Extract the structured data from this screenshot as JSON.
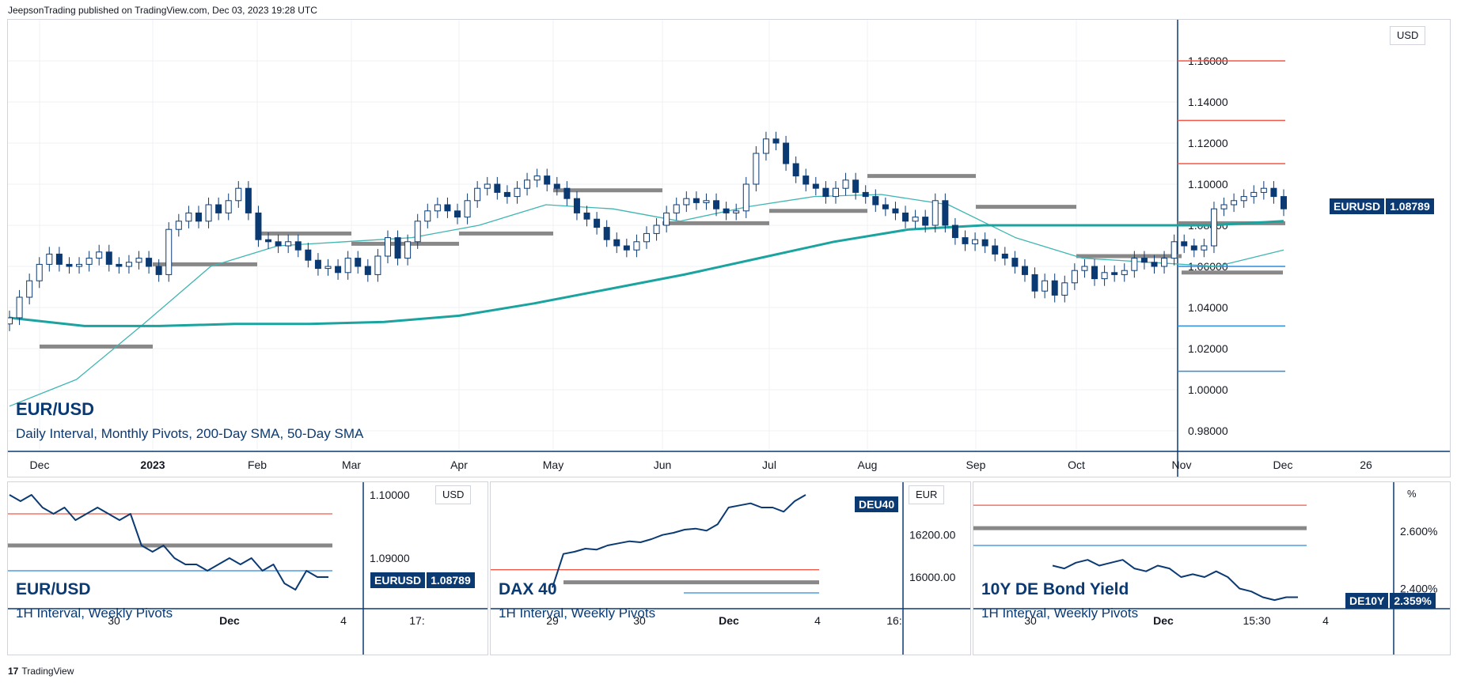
{
  "header": {
    "text": "JeepsonTrading published on TradingView.com, Dec 03, 2023 19:28 UTC"
  },
  "footer": {
    "logo": "17",
    "text": "TradingView"
  },
  "colors": {
    "candle_up": "#ffffff",
    "candle_down": "#0b3a73",
    "sma200": "#1aa39f",
    "sma50": "#3fb6b2",
    "pivot_grey": "#888888",
    "r_red": "#f05a4a",
    "s_blue": "#2e8bdc",
    "title_blue": "#0b3a73"
  },
  "main": {
    "title": "EUR/USD",
    "subtitle": "Daily Interval, Monthly Pivots, 200-Day SMA, 50-Day SMA",
    "unit": "USD",
    "badge_symbol": "EURUSD",
    "badge_value": "1.08789",
    "x_labels": [
      "Dec",
      "2023",
      "Feb",
      "Mar",
      "Apr",
      "May",
      "Jun",
      "Jul",
      "Aug",
      "Sep",
      "Oct",
      "Nov",
      "Dec",
      "26"
    ],
    "y_labels": [
      "1.16000",
      "1.14000",
      "1.12000",
      "1.10000",
      "1.08000",
      "1.06000",
      "1.04000",
      "1.02000",
      "1.00000",
      "0.98000"
    ]
  },
  "mini": [
    {
      "title": "EUR/USD",
      "subtitle": "1H Interval, Weekly Pivots",
      "unit": "USD",
      "badge_symbol": "EURUSD",
      "badge_value": "1.08789",
      "y_labels": [
        "1.10000",
        "1.09000"
      ],
      "x_labels": [
        "30",
        "Dec",
        "4",
        "17:"
      ]
    },
    {
      "title": "DAX 40",
      "subtitle": "1H Interval, Weekly Pivots",
      "unit": "EUR",
      "badge_symbol": "DEU40",
      "badge_value": "",
      "y_labels": [
        "16200.00",
        "16000.00"
      ],
      "x_labels": [
        "29",
        "30",
        "Dec",
        "4",
        "16:"
      ]
    },
    {
      "title": "10Y DE Bond Yield",
      "subtitle": "1H Interval, Weekly Pivots",
      "unit": "%",
      "badge_symbol": "DE10Y",
      "badge_value": "2.359%",
      "y_labels": [
        "2.600%",
        "2.400%"
      ],
      "x_labels": [
        "30",
        "Dec",
        "15:30",
        "4"
      ]
    }
  ],
  "chart_data": [
    {
      "type": "candlestick",
      "title": "EUR/USD",
      "ylim": [
        0.97,
        1.18
      ],
      "x": [
        "Dec",
        "2023",
        "Feb",
        "Mar",
        "Apr",
        "May",
        "Jun",
        "Jul",
        "Aug",
        "Sep",
        "Oct",
        "Nov",
        "Dec",
        "26"
      ],
      "close_series": [
        1.035,
        1.045,
        1.053,
        1.061,
        1.066,
        1.061,
        1.06,
        1.061,
        1.064,
        1.067,
        1.061,
        1.06,
        1.062,
        1.064,
        1.06,
        1.056,
        1.078,
        1.082,
        1.086,
        1.082,
        1.09,
        1.086,
        1.092,
        1.098,
        1.086,
        1.073,
        1.072,
        1.07,
        1.072,
        1.068,
        1.063,
        1.059,
        1.06,
        1.057,
        1.064,
        1.06,
        1.056,
        1.065,
        1.074,
        1.064,
        1.072,
        1.082,
        1.087,
        1.09,
        1.087,
        1.084,
        1.092,
        1.098,
        1.1,
        1.096,
        1.094,
        1.098,
        1.102,
        1.104,
        1.1,
        1.098,
        1.093,
        1.086,
        1.083,
        1.079,
        1.073,
        1.07,
        1.068,
        1.072,
        1.076,
        1.08,
        1.086,
        1.09,
        1.093,
        1.091,
        1.092,
        1.088,
        1.086,
        1.087,
        1.1,
        1.115,
        1.122,
        1.12,
        1.11,
        1.104,
        1.1,
        1.098,
        1.094,
        1.098,
        1.102,
        1.096,
        1.094,
        1.09,
        1.088,
        1.086,
        1.082,
        1.084,
        1.08,
        1.092,
        1.08,
        1.074,
        1.071,
        1.073,
        1.07,
        1.066,
        1.064,
        1.06,
        1.056,
        1.048,
        1.053,
        1.046,
        1.052,
        1.058,
        1.06,
        1.054,
        1.057,
        1.056,
        1.058,
        1.064,
        1.062,
        1.06,
        1.064,
        1.072,
        1.07,
        1.068,
        1.07,
        1.088,
        1.09,
        1.092,
        1.094,
        1.096,
        1.098,
        1.094,
        1.088
      ],
      "sma200": [
        1.035,
        1.031,
        1.031,
        1.032,
        1.032,
        1.033,
        1.036,
        1.042,
        1.049,
        1.056,
        1.064,
        1.072,
        1.078,
        1.08,
        1.08,
        1.08,
        1.08,
        1.082
      ],
      "sma50": [
        0.992,
        1.005,
        1.032,
        1.06,
        1.07,
        1.072,
        1.074,
        1.08,
        1.09,
        1.088,
        1.082,
        1.089,
        1.094,
        1.095,
        1.09,
        1.074,
        1.064,
        1.062,
        1.06,
        1.068
      ],
      "monthly_pivots": [
        {
          "from": "Dec",
          "to": "2023",
          "value": 1.021
        },
        {
          "from": "2023",
          "to": "Feb",
          "value": 1.061
        },
        {
          "from": "Feb",
          "to": "Mar",
          "value": 1.076
        },
        {
          "from": "Mar",
          "to": "Apr",
          "value": 1.071
        },
        {
          "from": "Apr",
          "to": "May",
          "value": 1.076
        },
        {
          "from": "May",
          "to": "Jun",
          "value": 1.097
        },
        {
          "from": "Jun",
          "to": "Jul",
          "value": 1.081
        },
        {
          "from": "Jul",
          "to": "Aug",
          "value": 1.087
        },
        {
          "from": "Aug",
          "to": "Sep",
          "value": 1.104
        },
        {
          "from": "Sep",
          "to": "Oct",
          "value": 1.089
        },
        {
          "from": "Oct",
          "to": "Nov",
          "value": 1.065
        },
        {
          "from": "Nov",
          "to": "Dec",
          "value": 1.057
        },
        {
          "from": "Dec",
          "to": "",
          "value": 1.081
        }
      ],
      "resistance_levels": [
        1.16,
        1.131,
        1.11
      ],
      "support_levels": [
        1.06,
        1.031,
        1.009
      ],
      "last_value": 1.08789
    },
    {
      "type": "line",
      "title": "EUR/USD",
      "ylim": [
        1.082,
        1.102
      ],
      "values": [
        1.1,
        1.099,
        1.1,
        1.098,
        1.097,
        1.098,
        1.096,
        1.097,
        1.098,
        1.097,
        1.096,
        1.097,
        1.092,
        1.091,
        1.092,
        1.09,
        1.089,
        1.089,
        1.088,
        1.089,
        1.09,
        1.089,
        1.09,
        1.088,
        1.089,
        1.086,
        1.085,
        1.088,
        1.087,
        1.087
      ],
      "pivot": 1.092,
      "r1": 1.097,
      "s1": 1.088
    },
    {
      "type": "line",
      "title": "DAX 40",
      "ylim": [
        15850,
        16450
      ],
      "values": [
        15950,
        16110,
        16120,
        16135,
        16130,
        16150,
        16160,
        16170,
        16165,
        16180,
        16200,
        16210,
        16225,
        16230,
        16220,
        16250,
        16330,
        16340,
        16350,
        16330,
        16330,
        16310,
        16360,
        16390
      ],
      "pivot": 15975,
      "r1": 16035,
      "s1": 15925
    },
    {
      "type": "line",
      "title": "10Y DE Bond Yield",
      "ylim": [
        2.33,
        2.77
      ],
      "values": [
        2.48,
        2.47,
        2.49,
        2.5,
        2.48,
        2.49,
        2.5,
        2.47,
        2.46,
        2.48,
        2.47,
        2.44,
        2.45,
        2.44,
        2.46,
        2.44,
        2.4,
        2.39,
        2.37,
        2.36,
        2.37,
        2.37
      ],
      "pivot": 2.61,
      "r1": 2.69,
      "s1": 2.55
    }
  ]
}
